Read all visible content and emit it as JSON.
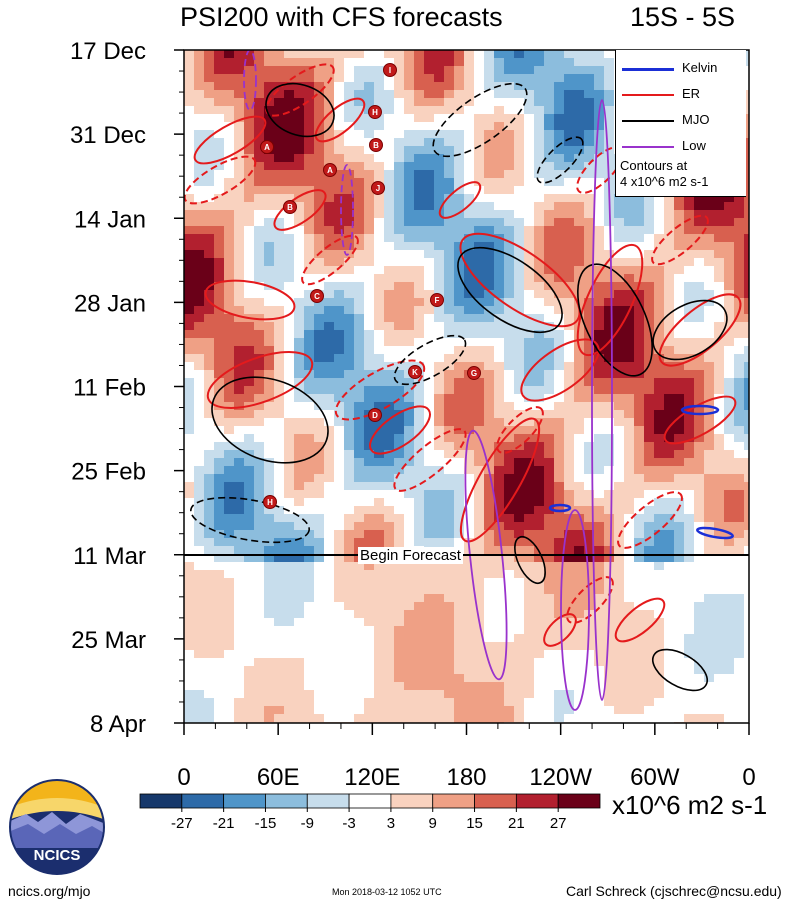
{
  "chart_data": {
    "type": "heatmap",
    "title": "PSI200 with CFS forecasts",
    "region": "15S - 5S",
    "y_tick_labels": [
      "17 Dec",
      "31 Dec",
      "14 Jan",
      "28 Jan",
      "11 Feb",
      "25 Feb",
      "11 Mar",
      "25 Mar",
      "8 Apr"
    ],
    "x_tick_labels": [
      "0",
      "60E",
      "120E",
      "180",
      "120W",
      "60W",
      "0"
    ],
    "x_range_deg_east": [
      0,
      360
    ],
    "colorbar": {
      "tick_labels": [
        "-27",
        "-21",
        "-15",
        "-9",
        "-3",
        "3",
        "9",
        "15",
        "21",
        "27"
      ],
      "colors": [
        "#16386b",
        "#2d6aa8",
        "#4f95c9",
        "#8cbddd",
        "#c7ddec",
        "#ffffff",
        "#f9d2bf",
        "#efa085",
        "#d8604f",
        "#b2202f",
        "#6a0018"
      ],
      "units": "x10^6 m2 s-1"
    },
    "legend": [
      {
        "name": "Kelvin",
        "color": "#1b2fd6"
      },
      {
        "name": "ER",
        "color": "#e41a1c"
      },
      {
        "name": "MJO",
        "color": "#000000"
      },
      {
        "name": "Low",
        "color": "#9932cc"
      }
    ],
    "contour_note": [
      "Contours at",
      "4 x10^6 m2 s-1"
    ],
    "forecast_label": "Begin Forecast",
    "forecast_start": "11 Mar",
    "tc_markers": [
      "I",
      "H",
      "A",
      "B",
      "J",
      "B",
      "C",
      "F",
      "A",
      "G",
      "K",
      "D",
      "H"
    ]
  },
  "footer": {
    "left": "ncics.org/mjo",
    "middle": "Mon 2018-03-12 1052 UTC",
    "right": "Carl Schreck (cjschrec@ncsu.edu)"
  },
  "logo": {
    "text": "NCICS"
  }
}
